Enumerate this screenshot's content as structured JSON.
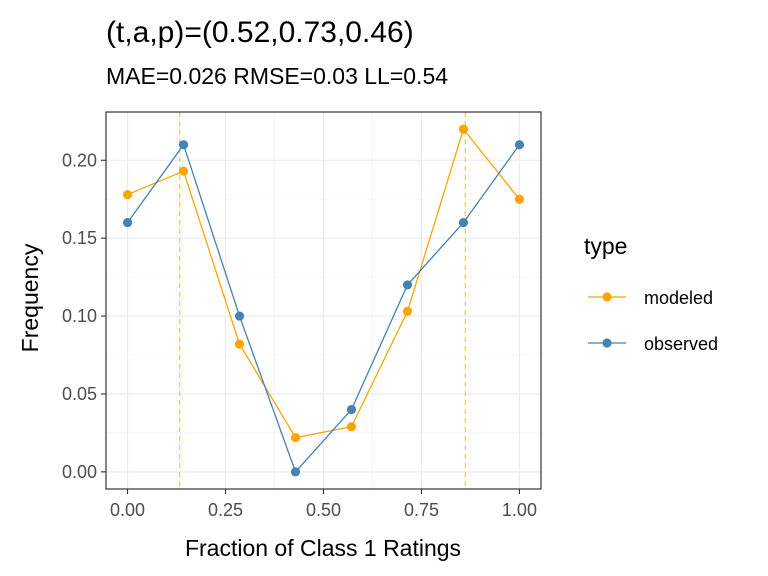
{
  "chart_data": {
    "type": "line",
    "title": "(t,a,p)=(0.52,0.73,0.46)",
    "subtitle": "MAE=0.026  RMSE=0.03  LL=0.54",
    "xlabel": "Fraction of Class 1 Ratings",
    "ylabel": "Frequency",
    "xlim": [
      -0.055,
      1.055
    ],
    "ylim": [
      -0.011,
      0.231
    ],
    "x_ticks": [
      0,
      0.25,
      0.5,
      0.75,
      1
    ],
    "x_tick_labels": [
      "0.00",
      "0.25",
      "0.50",
      "0.75",
      "1.00"
    ],
    "y_ticks": [
      0,
      0.05,
      0.1,
      0.15,
      0.2
    ],
    "y_tick_labels": [
      "0.00",
      "0.05",
      "0.10",
      "0.15",
      "0.20"
    ],
    "grid": true,
    "legend_title": "type",
    "legend_position": "right",
    "vlines": [
      {
        "x": 0.133,
        "color": "#FFD700",
        "style": "dashed"
      },
      {
        "x": 0.862,
        "color": "#FFD700",
        "style": "dashed"
      }
    ],
    "x": [
      0,
      0.1429,
      0.2857,
      0.4286,
      0.5714,
      0.7143,
      0.8571,
      1
    ],
    "series": [
      {
        "name": "modeled",
        "color": "#FFA500",
        "values": [
          0.178,
          0.193,
          0.082,
          0.022,
          0.029,
          0.103,
          0.22,
          0.175
        ]
      },
      {
        "name": "observed",
        "color": "#4682B4",
        "values": [
          0.16,
          0.21,
          0.1,
          0.0,
          0.04,
          0.12,
          0.16,
          0.21
        ]
      }
    ],
    "colors": {
      "panel_border": "#333333",
      "grid_major": "#EBEBEB",
      "grid_minor": "#F5F5F5"
    }
  }
}
